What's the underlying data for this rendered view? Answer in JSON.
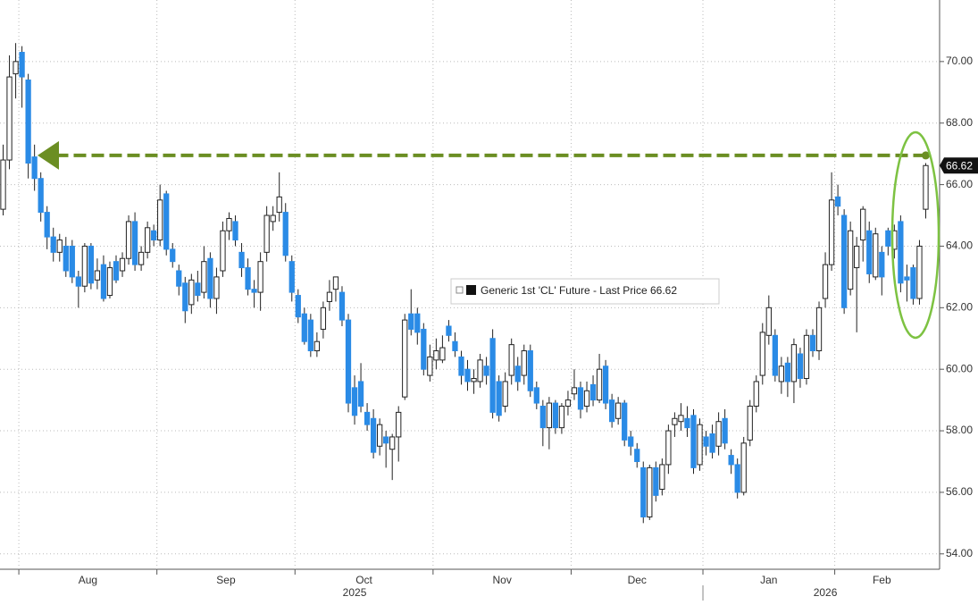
{
  "chart_data": {
    "type": "candlestick",
    "legend": "Generic 1st 'CL' Future - Last Price 66.62",
    "last_price": {
      "value": 66.62,
      "label": "66.62"
    },
    "reference_level": 66.95,
    "up_color": "#ffffff",
    "down_color": "#2a8be6",
    "line_color": "#6b8e23",
    "grid": true,
    "xlim": [
      -0.5,
      147.5
    ],
    "xticks": [
      {
        "value": 2.5,
        "label": "Aug"
      },
      {
        "value": 24.5,
        "label": "Sep"
      },
      {
        "value": 46.5,
        "label": "Oct"
      },
      {
        "value": 68.5,
        "label": "Nov"
      },
      {
        "value": 90.5,
        "label": "Dec"
      },
      {
        "value": 111.5,
        "label": "Jan"
      },
      {
        "value": 132.5,
        "label": "Feb"
      }
    ],
    "years": [
      {
        "value": 56,
        "label": "2025"
      },
      {
        "value": 131,
        "label": "2026"
      }
    ],
    "year_divider": 111.5,
    "ylim": [
      53.5,
      72.0
    ],
    "yticks": [
      {
        "value": 54,
        "label": "54.00"
      },
      {
        "value": 56,
        "label": "56.00"
      },
      {
        "value": 58,
        "label": "58.00"
      },
      {
        "value": 60,
        "label": "60.00"
      },
      {
        "value": 62,
        "label": "62.00"
      },
      {
        "value": 64,
        "label": "64.00"
      },
      {
        "value": 66,
        "label": "66.00"
      },
      {
        "value": 68,
        "label": "68.00"
      },
      {
        "value": 70,
        "label": "70.00"
      }
    ],
    "ohlc": [
      [
        65.2,
        67.3,
        65.0,
        66.8
      ],
      [
        66.8,
        70.2,
        66.5,
        69.5
      ],
      [
        69.6,
        70.6,
        68.8,
        70.0
      ],
      [
        70.3,
        70.5,
        68.5,
        69.5
      ],
      [
        69.4,
        69.6,
        66.2,
        66.7
      ],
      [
        66.9,
        67.3,
        65.8,
        66.2
      ],
      [
        66.2,
        66.4,
        64.8,
        65.1
      ],
      [
        65.1,
        65.3,
        63.9,
        64.3
      ],
      [
        64.3,
        64.6,
        63.5,
        63.8
      ],
      [
        63.8,
        64.4,
        63.5,
        64.2
      ],
      [
        64.0,
        64.3,
        63.0,
        63.2
      ],
      [
        64.0,
        64.2,
        62.8,
        63.0
      ],
      [
        63.0,
        63.2,
        62.0,
        62.7
      ],
      [
        62.7,
        64.1,
        62.5,
        64.0
      ],
      [
        64.0,
        64.1,
        62.6,
        62.8
      ],
      [
        62.9,
        63.6,
        62.6,
        63.2
      ],
      [
        63.4,
        63.7,
        62.2,
        62.3
      ],
      [
        62.4,
        63.5,
        62.3,
        63.3
      ],
      [
        63.5,
        63.7,
        62.8,
        62.9
      ],
      [
        63.2,
        63.8,
        63.0,
        63.6
      ],
      [
        63.6,
        65.0,
        63.4,
        64.8
      ],
      [
        64.8,
        65.1,
        63.2,
        63.4
      ],
      [
        63.4,
        64.0,
        63.2,
        63.8
      ],
      [
        63.8,
        64.8,
        63.6,
        64.6
      ],
      [
        64.5,
        64.7,
        64.0,
        64.2
      ],
      [
        64.2,
        66.0,
        64.0,
        65.5
      ],
      [
        65.7,
        65.8,
        63.7,
        63.9
      ],
      [
        63.9,
        64.1,
        63.3,
        63.5
      ],
      [
        63.2,
        63.4,
        62.4,
        62.7
      ],
      [
        62.8,
        63.0,
        61.5,
        61.9
      ],
      [
        62.1,
        63.1,
        61.8,
        62.9
      ],
      [
        62.8,
        63.2,
        62.2,
        62.4
      ],
      [
        62.5,
        64.0,
        62.3,
        63.5
      ],
      [
        63.6,
        63.8,
        62.0,
        62.3
      ],
      [
        62.3,
        63.3,
        61.8,
        63.0
      ],
      [
        63.2,
        64.8,
        63.0,
        64.5
      ],
      [
        64.5,
        65.1,
        64.2,
        64.9
      ],
      [
        64.8,
        65.0,
        64.0,
        64.2
      ],
      [
        63.8,
        64.1,
        63.0,
        63.3
      ],
      [
        63.3,
        63.6,
        62.4,
        62.6
      ],
      [
        62.6,
        62.9,
        62.0,
        62.5
      ],
      [
        62.5,
        63.8,
        61.9,
        63.5
      ],
      [
        63.8,
        65.3,
        63.5,
        65.0
      ],
      [
        64.8,
        65.3,
        64.5,
        65.0
      ],
      [
        65.1,
        66.4,
        64.8,
        65.6
      ],
      [
        65.1,
        65.4,
        63.5,
        63.7
      ],
      [
        63.5,
        63.7,
        62.2,
        62.5
      ],
      [
        62.4,
        62.6,
        61.5,
        61.7
      ],
      [
        61.8,
        62.0,
        60.8,
        60.9
      ],
      [
        61.6,
        61.8,
        60.4,
        60.6
      ],
      [
        60.6,
        61.2,
        60.4,
        60.9
      ],
      [
        61.3,
        62.2,
        61.0,
        62.0
      ],
      [
        62.2,
        62.9,
        61.9,
        62.5
      ],
      [
        62.6,
        63.0,
        62.2,
        63.0
      ],
      [
        62.5,
        62.7,
        61.4,
        61.6
      ],
      [
        61.6,
        61.8,
        58.6,
        58.9
      ],
      [
        59.4,
        59.8,
        58.2,
        58.5
      ],
      [
        59.6,
        60.2,
        58.6,
        58.8
      ],
      [
        58.6,
        58.9,
        58.0,
        58.2
      ],
      [
        58.4,
        58.7,
        57.1,
        57.3
      ],
      [
        57.5,
        58.4,
        57.2,
        58.2
      ],
      [
        57.8,
        58.0,
        56.8,
        57.6
      ],
      [
        57.4,
        57.9,
        56.4,
        57.8
      ],
      [
        57.8,
        58.8,
        57.0,
        58.6
      ],
      [
        59.1,
        61.8,
        59.0,
        61.6
      ],
      [
        61.8,
        62.6,
        61.1,
        61.3
      ],
      [
        61.8,
        62.0,
        60.8,
        61.2
      ],
      [
        61.3,
        61.5,
        59.8,
        60.0
      ],
      [
        59.8,
        60.8,
        59.6,
        60.4
      ],
      [
        60.3,
        61.0,
        60.0,
        60.6
      ],
      [
        60.3,
        61.1,
        60.2,
        60.7
      ],
      [
        61.4,
        61.6,
        60.9,
        61.1
      ],
      [
        60.9,
        61.2,
        60.4,
        60.6
      ],
      [
        60.4,
        60.6,
        59.5,
        59.8
      ],
      [
        60.0,
        60.3,
        59.3,
        59.6
      ],
      [
        59.6,
        60.0,
        59.2,
        59.7
      ],
      [
        59.6,
        60.5,
        59.4,
        60.3
      ],
      [
        60.1,
        60.4,
        59.5,
        59.8
      ],
      [
        61.0,
        61.3,
        58.4,
        58.6
      ],
      [
        59.6,
        59.8,
        58.3,
        58.5
      ],
      [
        58.8,
        59.9,
        58.6,
        59.6
      ],
      [
        59.8,
        61.0,
        59.5,
        60.8
      ],
      [
        60.1,
        60.4,
        59.3,
        59.6
      ],
      [
        59.8,
        60.8,
        59.5,
        60.6
      ],
      [
        60.6,
        60.8,
        59.1,
        59.3
      ],
      [
        59.4,
        59.6,
        58.7,
        58.9
      ],
      [
        58.8,
        59.0,
        57.5,
        58.1
      ],
      [
        58.1,
        59.1,
        57.4,
        58.9
      ],
      [
        58.9,
        59.0,
        57.9,
        58.1
      ],
      [
        58.1,
        58.9,
        57.9,
        58.8
      ],
      [
        58.8,
        59.3,
        58.5,
        59.0
      ],
      [
        59.2,
        60.0,
        59.0,
        59.4
      ],
      [
        59.4,
        59.6,
        58.4,
        58.7
      ],
      [
        58.8,
        59.6,
        58.6,
        59.3
      ],
      [
        59.5,
        59.8,
        58.8,
        59.0
      ],
      [
        59.0,
        60.5,
        58.9,
        60.0
      ],
      [
        60.1,
        60.3,
        58.7,
        58.9
      ],
      [
        59.0,
        59.2,
        58.1,
        58.3
      ],
      [
        58.4,
        59.1,
        58.2,
        58.9
      ],
      [
        58.9,
        59.0,
        57.5,
        57.7
      ],
      [
        57.8,
        58.0,
        57.2,
        57.5
      ],
      [
        57.4,
        57.6,
        56.8,
        57.0
      ],
      [
        56.8,
        57.0,
        55.0,
        55.2
      ],
      [
        55.2,
        56.9,
        55.1,
        56.8
      ],
      [
        56.8,
        57.0,
        55.7,
        55.9
      ],
      [
        56.1,
        57.1,
        55.9,
        56.9
      ],
      [
        56.9,
        58.2,
        56.6,
        58.0
      ],
      [
        58.2,
        58.6,
        57.8,
        58.4
      ],
      [
        58.3,
        58.9,
        58.0,
        58.5
      ],
      [
        58.4,
        58.8,
        57.8,
        58.1
      ],
      [
        58.5,
        58.7,
        56.6,
        56.8
      ],
      [
        56.9,
        58.4,
        56.7,
        58.2
      ],
      [
        57.8,
        58.0,
        57.2,
        57.5
      ],
      [
        57.9,
        58.2,
        57.1,
        57.3
      ],
      [
        57.5,
        58.6,
        57.2,
        58.3
      ],
      [
        58.4,
        58.7,
        57.4,
        57.6
      ],
      [
        57.2,
        57.4,
        56.6,
        56.9
      ],
      [
        56.9,
        57.1,
        55.8,
        56.0
      ],
      [
        56.0,
        57.8,
        55.9,
        57.6
      ],
      [
        57.7,
        59.0,
        57.5,
        58.8
      ],
      [
        58.8,
        59.8,
        58.6,
        59.6
      ],
      [
        59.8,
        61.5,
        59.5,
        61.2
      ],
      [
        61.1,
        62.4,
        60.8,
        62.0
      ],
      [
        61.1,
        61.3,
        59.6,
        59.8
      ],
      [
        59.6,
        60.4,
        59.2,
        60.1
      ],
      [
        60.2,
        60.4,
        59.1,
        59.6
      ],
      [
        59.6,
        61.0,
        58.9,
        60.8
      ],
      [
        60.5,
        60.7,
        59.4,
        59.7
      ],
      [
        59.7,
        61.3,
        59.5,
        61.1
      ],
      [
        61.1,
        61.3,
        60.4,
        60.6
      ],
      [
        60.6,
        62.2,
        60.3,
        62.0
      ],
      [
        62.3,
        63.8,
        62.0,
        63.4
      ],
      [
        63.4,
        66.4,
        63.2,
        65.5
      ],
      [
        65.6,
        66.0,
        65.0,
        65.3
      ],
      [
        65.0,
        65.2,
        61.8,
        62.0
      ],
      [
        62.6,
        64.8,
        62.4,
        64.5
      ],
      [
        63.3,
        64.3,
        61.2,
        64.0
      ],
      [
        64.2,
        65.3,
        63.5,
        65.2
      ],
      [
        64.5,
        64.8,
        62.8,
        63.1
      ],
      [
        63.0,
        64.6,
        62.9,
        64.4
      ],
      [
        63.8,
        64.0,
        62.4,
        63.0
      ],
      [
        64.5,
        64.6,
        63.7,
        64.0
      ],
      [
        63.9,
        64.7,
        63.6,
        64.5
      ],
      [
        64.8,
        65.0,
        62.5,
        62.8
      ],
      [
        63.0,
        63.4,
        62.2,
        62.9
      ],
      [
        63.3,
        63.4,
        62.1,
        62.3
      ],
      [
        62.3,
        64.2,
        62.1,
        64.0
      ],
      [
        65.2,
        66.7,
        64.9,
        66.62
      ]
    ]
  }
}
